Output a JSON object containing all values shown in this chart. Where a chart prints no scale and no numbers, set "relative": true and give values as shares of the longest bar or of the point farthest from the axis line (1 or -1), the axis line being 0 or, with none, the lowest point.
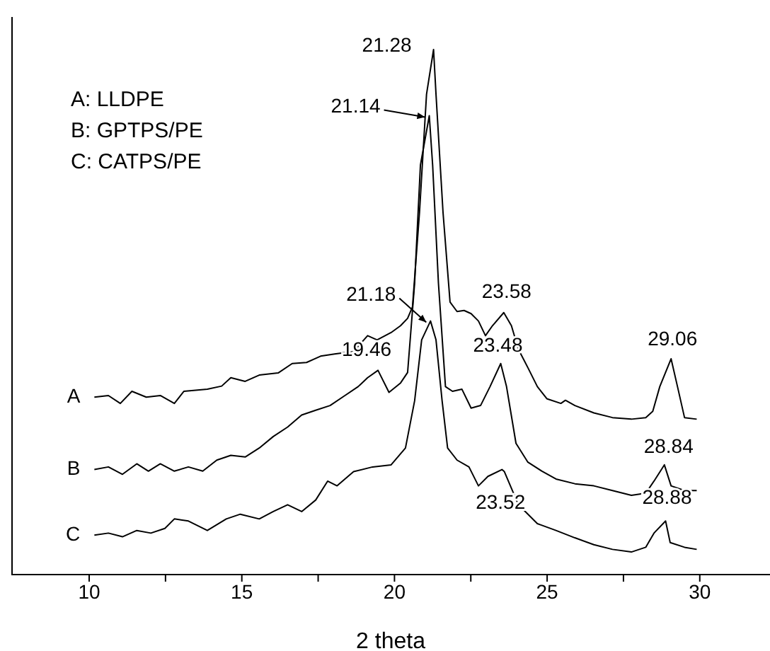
{
  "chart_data": {
    "type": "line",
    "relative": true,
    "xlabel": "2 theta",
    "xlim": [
      7.45,
      32.3
    ],
    "xticks": [
      10,
      {
        "value": 12.5,
        "label": null
      },
      15,
      {
        "value": 17.5,
        "label": null
      },
      20,
      {
        "value": 22.5,
        "label": null
      },
      25,
      {
        "value": 27.5,
        "label": null
      },
      30
    ],
    "marker": "none",
    "line_style": "solid",
    "series": [
      {
        "name": "A",
        "color": "#000000",
        "x": [
          10.17,
          10.63,
          11.02,
          11.4,
          11.87,
          12.33,
          12.79,
          13.1,
          13.87,
          14.34,
          14.64,
          15.11,
          15.57,
          16.19,
          16.65,
          17.12,
          17.58,
          18.04,
          18.66,
          19.12,
          19.43,
          19.89,
          20.2,
          20.43,
          20.59,
          20.82,
          21.05,
          21.28,
          21.36,
          21.59,
          21.82,
          22.05,
          22.28,
          22.51,
          22.75,
          22.98,
          23.21,
          23.58,
          23.83,
          24.06,
          24.37,
          24.68,
          24.99,
          25.45,
          25.6,
          25.91,
          26.53,
          27.14,
          27.76,
          28.23,
          28.46,
          28.69,
          29.06,
          29.27,
          29.5,
          29.9
        ],
        "values": [
          0.338,
          0.341,
          0.326,
          0.349,
          0.338,
          0.341,
          0.326,
          0.349,
          0.353,
          0.359,
          0.375,
          0.368,
          0.38,
          0.384,
          0.402,
          0.404,
          0.416,
          0.42,
          0.425,
          0.455,
          0.447,
          0.461,
          0.474,
          0.488,
          0.51,
          0.69,
          0.915,
          1.0,
          0.915,
          0.69,
          0.519,
          0.501,
          0.503,
          0.497,
          0.483,
          0.455,
          0.474,
          0.499,
          0.474,
          0.429,
          0.394,
          0.358,
          0.335,
          0.326,
          0.332,
          0.322,
          0.308,
          0.299,
          0.296,
          0.299,
          0.311,
          0.358,
          0.411,
          0.358,
          0.299,
          0.296
        ]
      },
      {
        "name": "B",
        "color": "#000000",
        "x": [
          10.17,
          10.63,
          11.09,
          11.56,
          11.94,
          12.33,
          12.79,
          13.25,
          13.72,
          14.18,
          14.64,
          15.11,
          15.57,
          16.03,
          16.5,
          16.96,
          17.42,
          17.89,
          18.35,
          18.81,
          19.12,
          19.46,
          19.82,
          20.2,
          20.43,
          20.66,
          20.85,
          21.14,
          21.25,
          21.44,
          21.67,
          21.9,
          22.21,
          22.51,
          22.82,
          23.13,
          23.48,
          23.67,
          23.98,
          24.37,
          24.83,
          25.29,
          25.91,
          26.53,
          27.14,
          27.76,
          28.23,
          28.5,
          28.84,
          29.06,
          29.5,
          29.9
        ],
        "values": [
          0.2,
          0.205,
          0.191,
          0.211,
          0.197,
          0.211,
          0.197,
          0.205,
          0.197,
          0.218,
          0.227,
          0.224,
          0.241,
          0.263,
          0.281,
          0.304,
          0.313,
          0.322,
          0.34,
          0.358,
          0.375,
          0.389,
          0.347,
          0.365,
          0.385,
          0.555,
          0.78,
          0.874,
          0.78,
          0.555,
          0.358,
          0.349,
          0.353,
          0.317,
          0.322,
          0.358,
          0.402,
          0.358,
          0.25,
          0.214,
          0.197,
          0.182,
          0.173,
          0.169,
          0.16,
          0.151,
          0.155,
          0.178,
          0.209,
          0.169,
          0.16,
          0.16
        ]
      },
      {
        "name": "C",
        "color": "#000000",
        "x": [
          10.17,
          10.63,
          11.09,
          11.56,
          12.02,
          12.48,
          12.79,
          13.25,
          13.87,
          14.49,
          14.95,
          15.57,
          16.03,
          16.5,
          16.96,
          17.42,
          17.81,
          18.12,
          18.66,
          19.28,
          19.89,
          20.36,
          20.66,
          20.89,
          21.18,
          21.36,
          21.56,
          21.74,
          22.05,
          22.44,
          22.75,
          23.06,
          23.52,
          23.6,
          24.06,
          24.68,
          25.29,
          25.91,
          26.53,
          27.14,
          27.76,
          28.23,
          28.5,
          28.88,
          29.03,
          29.5,
          29.9
        ],
        "values": [
          0.075,
          0.079,
          0.072,
          0.084,
          0.079,
          0.088,
          0.106,
          0.102,
          0.084,
          0.106,
          0.115,
          0.106,
          0.12,
          0.133,
          0.12,
          0.142,
          0.178,
          0.169,
          0.196,
          0.205,
          0.209,
          0.241,
          0.331,
          0.447,
          0.483,
          0.447,
          0.331,
          0.241,
          0.218,
          0.205,
          0.169,
          0.187,
          0.2,
          0.196,
          0.133,
          0.097,
          0.084,
          0.07,
          0.057,
          0.048,
          0.043,
          0.052,
          0.079,
          0.102,
          0.061,
          0.052,
          0.048
        ]
      }
    ],
    "annotations": [
      "A: LLDPE",
      "B: GPTPS/PE",
      "C: CATPS/PE",
      {
        "text": "21.28",
        "x": 21.28,
        "y": 1.0
      },
      {
        "text": "21.14",
        "x": 21.14,
        "y": 0.874
      },
      {
        "text": "21.18",
        "x": 21.18,
        "y": 0.483
      },
      {
        "text": "19.46",
        "x": 19.46,
        "y": 0.389
      },
      {
        "text": "23.58",
        "x": 23.58,
        "y": 0.499
      },
      {
        "text": "23.48",
        "x": 23.48,
        "y": 0.402
      },
      {
        "text": "23.52",
        "x": 23.52,
        "y": 0.2
      },
      {
        "text": "29.06",
        "x": 29.06,
        "y": 0.411
      },
      {
        "text": "28.84",
        "x": 28.84,
        "y": 0.209
      },
      {
        "text": "28.88",
        "x": 28.88,
        "y": 0.102
      }
    ]
  }
}
